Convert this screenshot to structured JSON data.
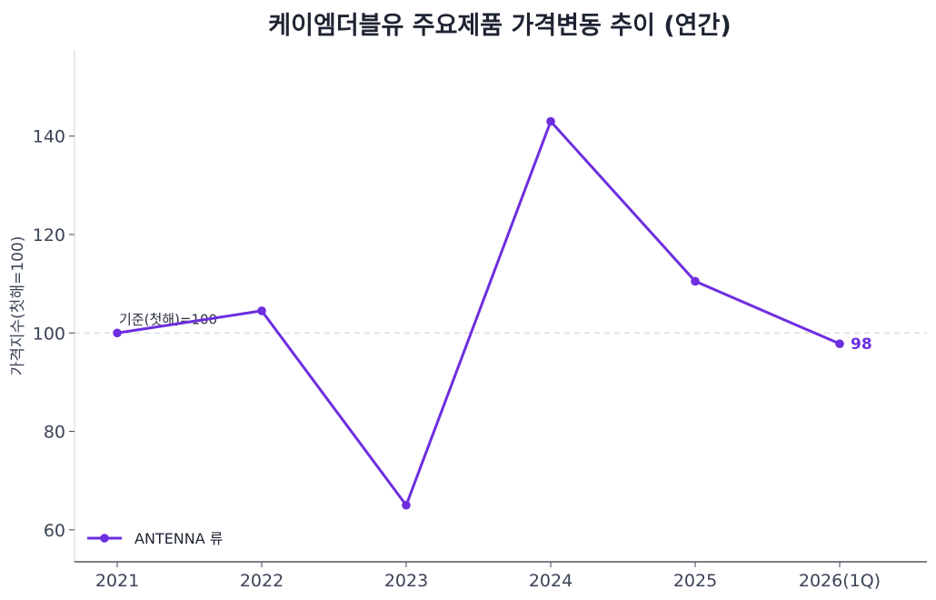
{
  "chart_data": {
    "type": "line",
    "title": "케이엠더블유 주요제품 가격변동 추이 (연간)",
    "xlabel": "",
    "ylabel": "가격지수(첫해=100)",
    "categories": [
      "2021",
      "2022",
      "2023",
      "2024",
      "2025",
      "2026(1Q)"
    ],
    "series": [
      {
        "name": "ANTENNA 류",
        "values": [
          100,
          104.5,
          65,
          143,
          110.5,
          97.8
        ],
        "color": "#6d2ee0"
      }
    ],
    "ylim": [
      53.5,
      157.5
    ],
    "yticks": [
      60,
      80,
      100,
      120,
      140
    ],
    "baseline": {
      "value": 100,
      "label": "기준(첫해)=100"
    },
    "end_label": "98",
    "grid": false,
    "legend": "bottom-left"
  }
}
